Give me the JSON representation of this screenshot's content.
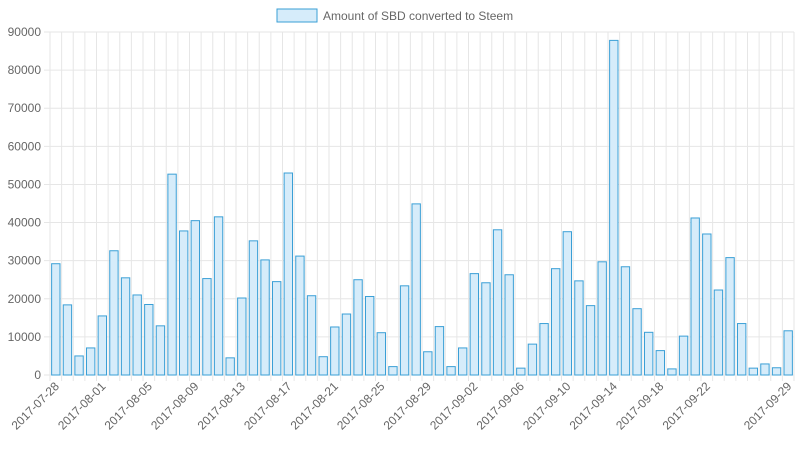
{
  "chart_data": {
    "type": "bar",
    "legend": {
      "label": "Amount of SBD converted to Steem",
      "position": "top"
    },
    "colors": {
      "fill": "#d6ecfa",
      "stroke": "#3a9fd6",
      "grid": "#e6e6e6",
      "text": "#666666"
    },
    "grid": true,
    "ylim": [
      0,
      90000
    ],
    "yticks": [
      0,
      10000,
      20000,
      30000,
      40000,
      50000,
      60000,
      70000,
      80000,
      90000
    ],
    "xtick_labels": [
      "2017-07-28",
      "2017-08-01",
      "2017-08-05",
      "2017-08-09",
      "2017-08-13",
      "2017-08-17",
      "2017-08-21",
      "2017-08-25",
      "2017-08-29",
      "2017-09-02",
      "2017-09-06",
      "2017-09-10",
      "2017-09-14",
      "2017-09-18",
      "2017-09-22",
      "2017-09-29"
    ],
    "xtick_indices": [
      0,
      4,
      8,
      12,
      16,
      20,
      24,
      28,
      32,
      36,
      40,
      44,
      48,
      52,
      56,
      63
    ],
    "start_date": "2017-07-28",
    "values": [
      29200,
      18400,
      5000,
      7100,
      15500,
      32600,
      25500,
      21000,
      18500,
      12900,
      52700,
      37800,
      40500,
      25300,
      41500,
      4500,
      20200,
      35200,
      30200,
      24500,
      53000,
      31200,
      20800,
      4800,
      12600,
      16000,
      25000,
      20600,
      11100,
      2200,
      23400,
      44900,
      6100,
      12700,
      2200,
      7100,
      26600,
      24200,
      38100,
      26300,
      1800,
      8100,
      13500,
      27900,
      37600,
      24700,
      18200,
      29700,
      87800,
      28400,
      17400,
      11200,
      6400,
      1600,
      10200,
      41200,
      37000,
      22300,
      30800,
      13500,
      1800,
      2900,
      1900,
      11600
    ]
  }
}
